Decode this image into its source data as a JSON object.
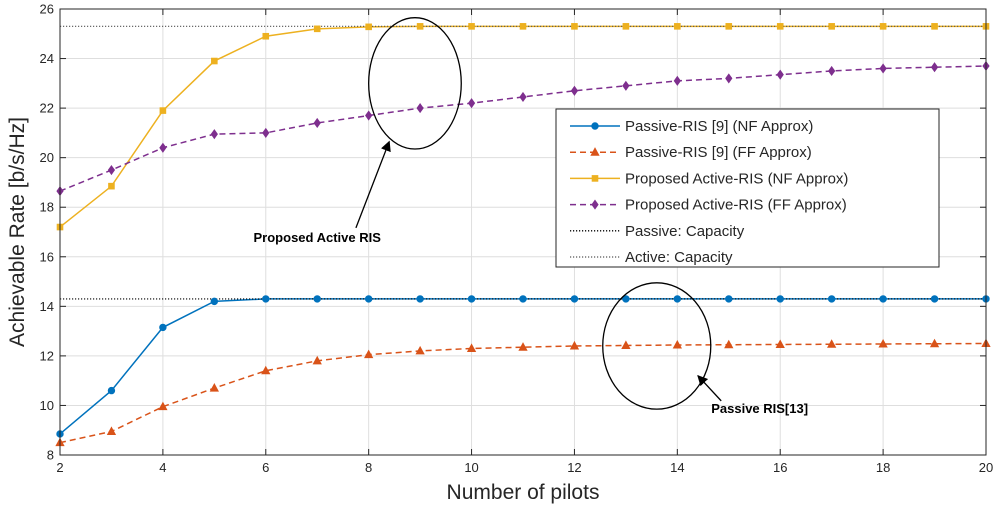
{
  "chart_data": {
    "type": "line",
    "title": "",
    "xlabel": "Number of pilots",
    "ylabel": "Achievable Rate [b/s/Hz]",
    "xlim": [
      2,
      20
    ],
    "ylim": [
      8,
      26
    ],
    "xticks": [
      2,
      4,
      6,
      8,
      10,
      12,
      14,
      16,
      18,
      20
    ],
    "yticks": [
      8,
      10,
      12,
      14,
      16,
      18,
      20,
      22,
      24,
      26
    ],
    "grid": true,
    "legend_position": "right",
    "x": [
      2,
      3,
      4,
      5,
      6,
      7,
      8,
      9,
      10,
      11,
      12,
      13,
      14,
      15,
      16,
      17,
      18,
      19,
      20
    ],
    "series": [
      {
        "name": "Passive-RIS [9] (NF Approx)",
        "color": "#0072BD",
        "style": "solid",
        "marker": "circle",
        "values": [
          8.85,
          10.6,
          13.15,
          14.2,
          14.3,
          14.3,
          14.3,
          14.3,
          14.3,
          14.3,
          14.3,
          14.3,
          14.3,
          14.3,
          14.3,
          14.3,
          14.3,
          14.3,
          14.3
        ]
      },
      {
        "name": "Passive-RIS [9] (FF Approx)",
        "color": "#D95319",
        "style": "dashed",
        "marker": "triangle",
        "values": [
          8.5,
          8.95,
          9.95,
          10.7,
          11.4,
          11.8,
          12.05,
          12.2,
          12.3,
          12.35,
          12.4,
          12.42,
          12.44,
          12.45,
          12.46,
          12.47,
          12.48,
          12.49,
          12.5
        ]
      },
      {
        "name": "Proposed Active-RIS (NF Approx)",
        "color": "#EDB120",
        "style": "solid",
        "marker": "square",
        "values": [
          17.2,
          18.85,
          21.9,
          23.9,
          24.9,
          25.2,
          25.28,
          25.3,
          25.3,
          25.3,
          25.3,
          25.3,
          25.3,
          25.3,
          25.3,
          25.3,
          25.3,
          25.3,
          25.3
        ]
      },
      {
        "name": "Proposed Active-RIS (FF Approx)",
        "color": "#7E2F8E",
        "style": "dashed",
        "marker": "diamond",
        "values": [
          18.65,
          19.5,
          20.4,
          20.95,
          21.0,
          21.4,
          21.7,
          22.0,
          22.2,
          22.45,
          22.7,
          22.9,
          23.1,
          23.2,
          23.35,
          23.5,
          23.6,
          23.65,
          23.7
        ]
      },
      {
        "name": "Passive: Capacity",
        "color": "#000000",
        "style": "dotted",
        "marker": "none",
        "values": [
          14.3,
          14.3,
          14.3,
          14.3,
          14.3,
          14.3,
          14.3,
          14.3,
          14.3,
          14.3,
          14.3,
          14.3,
          14.3,
          14.3,
          14.3,
          14.3,
          14.3,
          14.3,
          14.3
        ]
      },
      {
        "name": "Active: Capacity",
        "color": "#555555",
        "style": "dotted",
        "marker": "none",
        "values": [
          25.3,
          25.3,
          25.3,
          25.3,
          25.3,
          25.3,
          25.3,
          25.3,
          25.3,
          25.3,
          25.3,
          25.3,
          25.3,
          25.3,
          25.3,
          25.3,
          25.3,
          25.3,
          25.3
        ]
      }
    ],
    "annotations": [
      {
        "text": "Proposed Active RIS",
        "ellipse_center": [
          8.9,
          23.0
        ],
        "ellipse_radius": [
          0.9,
          2.65
        ],
        "label_at": [
          7.0,
          16.6
        ],
        "arrow_to": [
          8.4,
          20.65
        ]
      },
      {
        "text": "Passive RIS[13]",
        "ellipse_center": [
          13.6,
          12.4
        ],
        "ellipse_radius": [
          1.05,
          2.55
        ],
        "label_at": [
          15.6,
          9.7
        ],
        "arrow_to": [
          14.4,
          11.2
        ]
      }
    ]
  }
}
